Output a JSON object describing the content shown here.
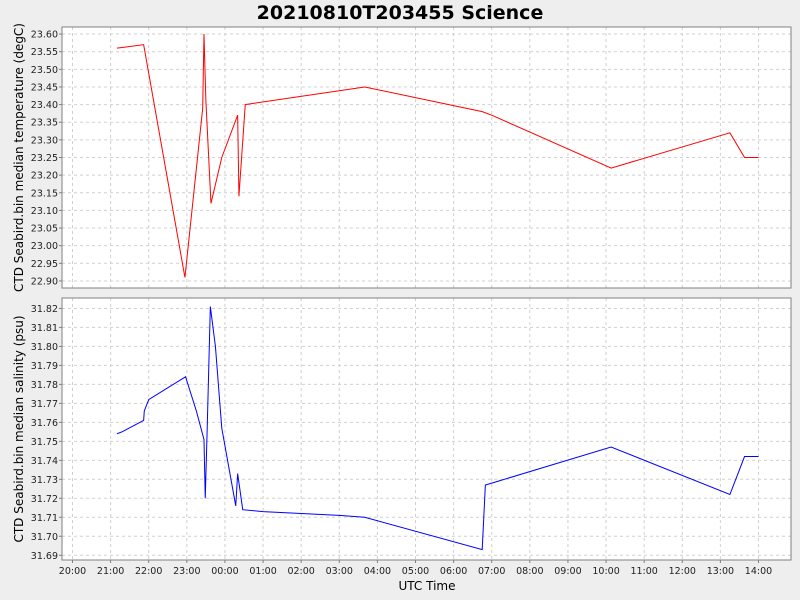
{
  "chart_data": {
    "type": "line",
    "title": "20210810T203455 Science",
    "xlabel": "UTC Time",
    "x_ticks": [
      "20:00",
      "21:00",
      "22:00",
      "23:00",
      "00:00",
      "01:00",
      "02:00",
      "03:00",
      "04:00",
      "05:00",
      "06:00",
      "07:00",
      "08:00",
      "09:00",
      "10:00",
      "11:00",
      "12:00",
      "13:00",
      "14:00"
    ],
    "xlim": [
      "20:00",
      "14:00"
    ],
    "grid": true,
    "panels": [
      {
        "name": "temperature",
        "ylabel": "CTD Seabird.bin median temperature (degC)",
        "color": "#ff0000",
        "ylim": [
          22.88,
          23.62
        ],
        "y_ticks": [
          "23.60",
          "23.55",
          "23.50",
          "23.45",
          "23.40",
          "23.35",
          "23.30",
          "23.25",
          "23.20",
          "23.15",
          "23.10",
          "23.05",
          "23.00",
          "22.95",
          "22.90"
        ],
        "series": [
          {
            "x": "21:10",
            "y": 23.56
          },
          {
            "x": "21:52",
            "y": 23.57
          },
          {
            "x": "22:57",
            "y": 22.91
          },
          {
            "x": "23:25",
            "y": 23.39
          },
          {
            "x": "23:27",
            "y": 23.6
          },
          {
            "x": "23:30",
            "y": 23.41
          },
          {
            "x": "23:38",
            "y": 23.12
          },
          {
            "x": "23:55",
            "y": 23.25
          },
          {
            "x": "00:20",
            "y": 23.37
          },
          {
            "x": "00:22",
            "y": 23.14
          },
          {
            "x": "00:32",
            "y": 23.4
          },
          {
            "x": "03:40",
            "y": 23.45
          },
          {
            "x": "06:45",
            "y": 23.38
          },
          {
            "x": "07:00",
            "y": 23.37
          },
          {
            "x": "10:08",
            "y": 23.22
          },
          {
            "x": "13:15",
            "y": 23.32
          },
          {
            "x": "13:38",
            "y": 23.25
          },
          {
            "x": "14:00",
            "y": 23.25
          }
        ]
      },
      {
        "name": "salinity",
        "ylabel": "CTD Seabird.bin median salinity (psu)",
        "color": "#0000ff",
        "ylim": [
          31.6875,
          31.8255
        ],
        "y_ticks": [
          "31.82",
          "31.81",
          "31.80",
          "31.79",
          "31.78",
          "31.77",
          "31.76",
          "31.75",
          "31.74",
          "31.73",
          "31.72",
          "31.71",
          "31.70",
          "31.69"
        ],
        "series": [
          {
            "x": "21:10",
            "y": 31.754
          },
          {
            "x": "21:18",
            "y": 31.755
          },
          {
            "x": "21:52",
            "y": 31.761
          },
          {
            "x": "21:53",
            "y": 31.766
          },
          {
            "x": "22:00",
            "y": 31.772
          },
          {
            "x": "22:58",
            "y": 31.784
          },
          {
            "x": "23:15",
            "y": 31.766
          },
          {
            "x": "23:27",
            "y": 31.751
          },
          {
            "x": "23:29",
            "y": 31.72
          },
          {
            "x": "23:32",
            "y": 31.756
          },
          {
            "x": "23:37",
            "y": 31.821
          },
          {
            "x": "23:45",
            "y": 31.8
          },
          {
            "x": "23:55",
            "y": 31.757
          },
          {
            "x": "00:17",
            "y": 31.716
          },
          {
            "x": "00:20",
            "y": 31.733
          },
          {
            "x": "00:28",
            "y": 31.714
          },
          {
            "x": "01:00",
            "y": 31.713
          },
          {
            "x": "02:00",
            "y": 31.712
          },
          {
            "x": "03:00",
            "y": 31.711
          },
          {
            "x": "03:40",
            "y": 31.71
          },
          {
            "x": "06:45",
            "y": 31.693
          },
          {
            "x": "06:50",
            "y": 31.727
          },
          {
            "x": "07:10",
            "y": 31.729
          },
          {
            "x": "10:08",
            "y": 31.747
          },
          {
            "x": "13:15",
            "y": 31.722
          },
          {
            "x": "13:38",
            "y": 31.742
          },
          {
            "x": "14:00",
            "y": 31.742
          }
        ]
      }
    ]
  }
}
